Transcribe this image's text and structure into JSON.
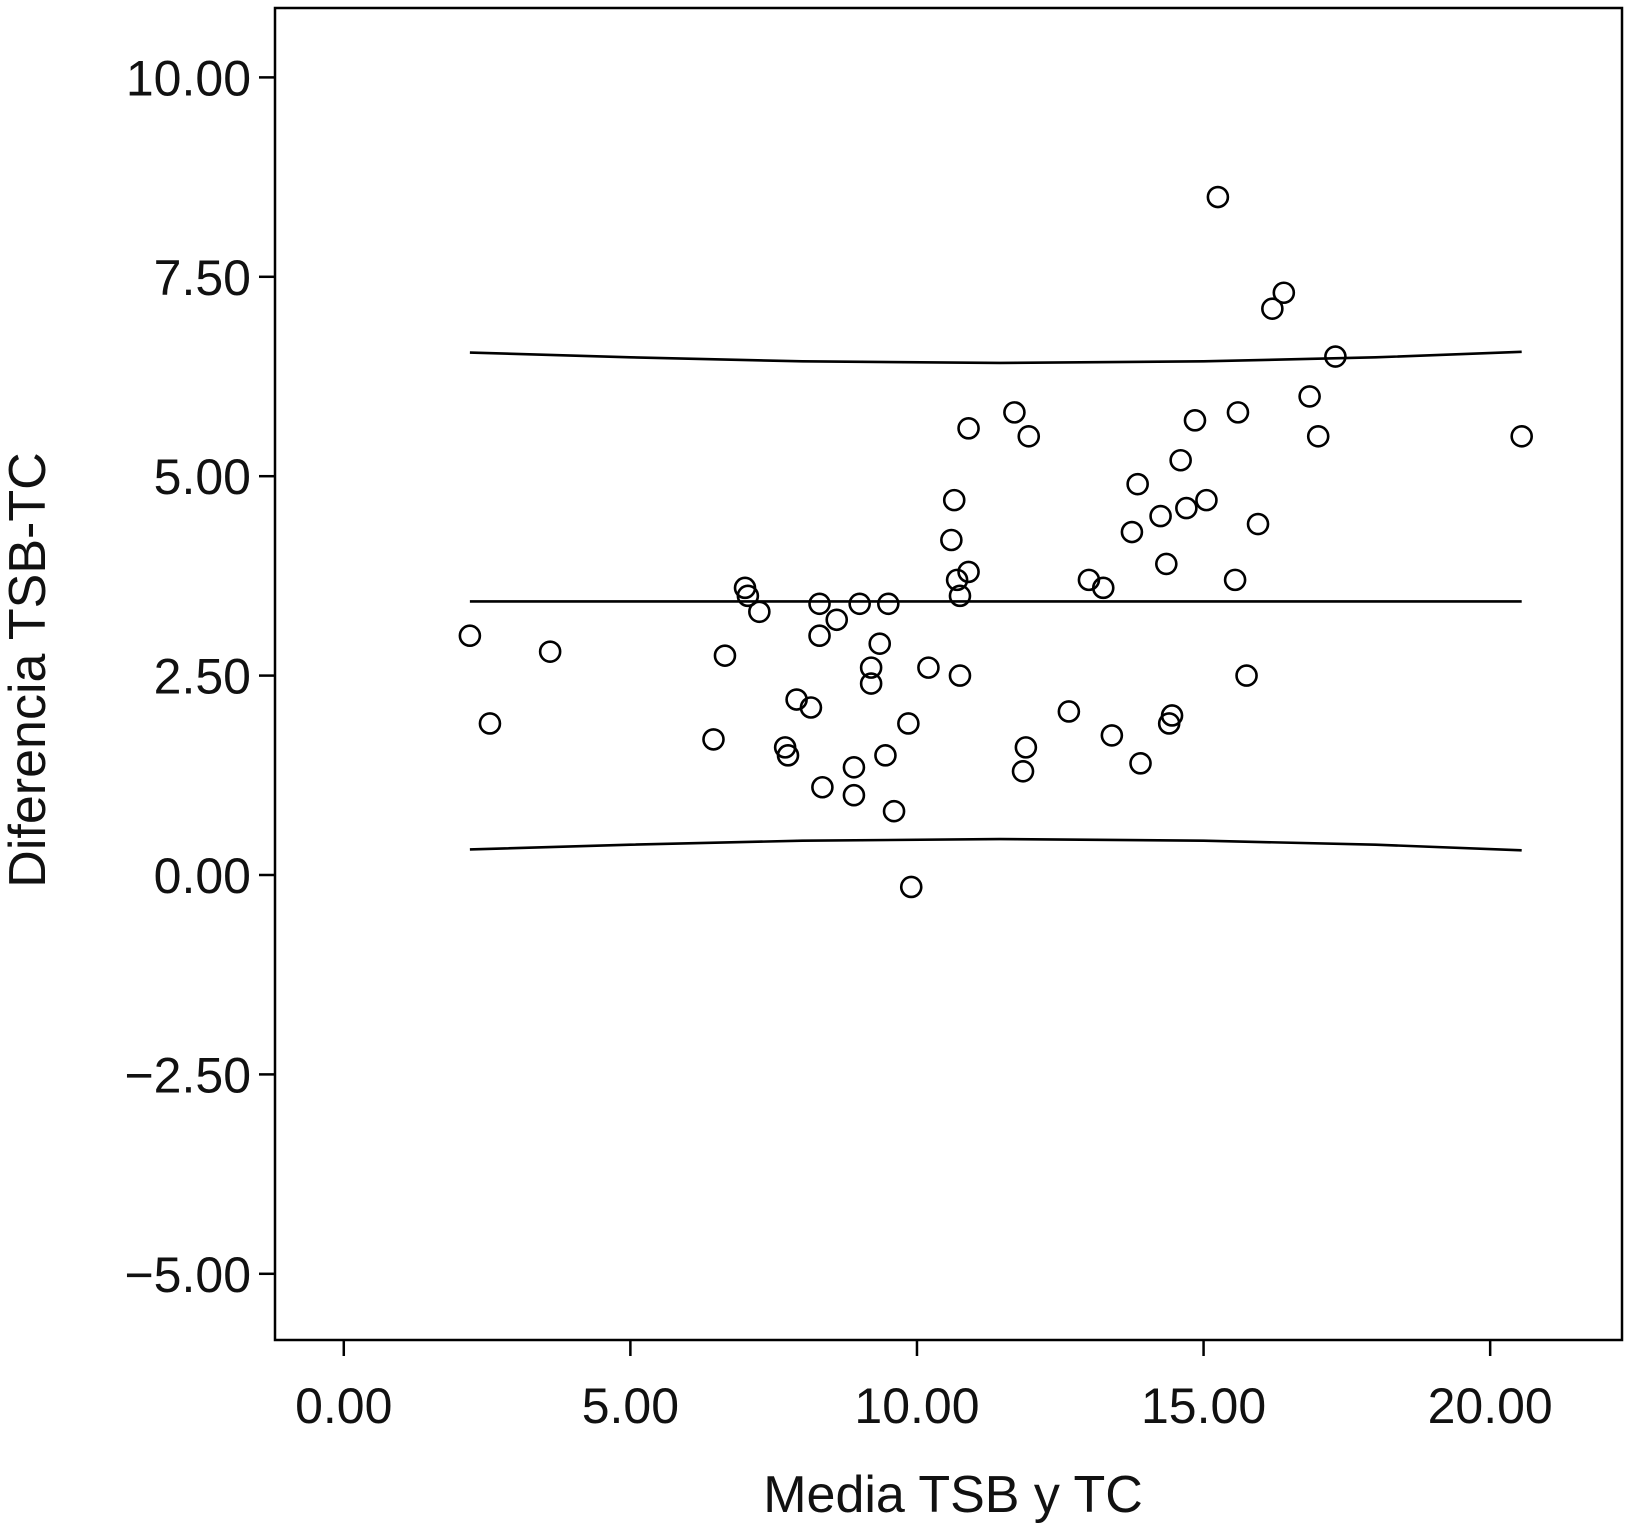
{
  "chart_data": {
    "type": "scatter",
    "title": "",
    "xlabel": "Media TSB y TC",
    "ylabel": "Diferencia TSB-TC",
    "xlim": [
      -1.2,
      22.3
    ],
    "ylim": [
      -5.83,
      10.87
    ],
    "x_ticks": [
      0,
      5,
      10,
      15,
      20
    ],
    "x_tick_labels": [
      "0.00",
      "5.00",
      "10.00",
      "15.00",
      "20.00"
    ],
    "y_ticks": [
      10,
      7.5,
      5,
      2.5,
      0,
      -2.5,
      -5
    ],
    "y_tick_labels": [
      "10.00",
      "7.50",
      "5.00",
      "2.50",
      "0.00",
      "−2.50",
      "−5.00"
    ],
    "grid": false,
    "series": [
      {
        "marker": "open-circle",
        "points": [
          [
            2.2,
            3.0
          ],
          [
            2.55,
            1.9
          ],
          [
            3.6,
            2.8
          ],
          [
            6.45,
            1.7
          ],
          [
            6.65,
            2.75
          ],
          [
            7.0,
            3.6
          ],
          [
            7.05,
            3.5
          ],
          [
            7.25,
            3.3
          ],
          [
            7.7,
            1.6
          ],
          [
            7.75,
            1.5
          ],
          [
            7.9,
            2.2
          ],
          [
            8.15,
            2.1
          ],
          [
            8.3,
            3.4
          ],
          [
            8.3,
            3.0
          ],
          [
            8.35,
            1.1
          ],
          [
            8.6,
            3.2
          ],
          [
            8.9,
            1.35
          ],
          [
            8.9,
            1.0
          ],
          [
            9.0,
            3.4
          ],
          [
            9.2,
            2.6
          ],
          [
            9.2,
            2.4
          ],
          [
            9.35,
            2.9
          ],
          [
            9.45,
            1.5
          ],
          [
            9.5,
            3.4
          ],
          [
            9.6,
            0.8
          ],
          [
            9.85,
            1.9
          ],
          [
            9.9,
            -0.15
          ],
          [
            10.2,
            2.6
          ],
          [
            10.6,
            4.2
          ],
          [
            10.65,
            4.7
          ],
          [
            10.7,
            3.7
          ],
          [
            10.75,
            3.5
          ],
          [
            10.75,
            2.5
          ],
          [
            10.9,
            3.8
          ],
          [
            10.9,
            5.6
          ],
          [
            11.7,
            5.8
          ],
          [
            11.85,
            1.3
          ],
          [
            11.9,
            1.6
          ],
          [
            11.95,
            5.5
          ],
          [
            12.65,
            2.05
          ],
          [
            13.0,
            3.7
          ],
          [
            13.25,
            3.6
          ],
          [
            13.4,
            1.75
          ],
          [
            13.75,
            4.3
          ],
          [
            13.85,
            4.9
          ],
          [
            13.9,
            1.4
          ],
          [
            14.25,
            4.5
          ],
          [
            14.35,
            3.9
          ],
          [
            14.4,
            1.9
          ],
          [
            14.45,
            2.0
          ],
          [
            14.6,
            5.2
          ],
          [
            14.7,
            4.6
          ],
          [
            14.85,
            5.7
          ],
          [
            15.05,
            4.7
          ],
          [
            15.25,
            8.5
          ],
          [
            15.55,
            3.7
          ],
          [
            15.6,
            5.8
          ],
          [
            15.75,
            2.5
          ],
          [
            15.95,
            4.4
          ],
          [
            16.2,
            7.1
          ],
          [
            16.4,
            7.3
          ],
          [
            16.85,
            6.0
          ],
          [
            17.0,
            5.5
          ],
          [
            17.3,
            6.5
          ],
          [
            20.55,
            5.5
          ]
        ]
      }
    ],
    "reference_lines": [
      {
        "kind": "mean",
        "x": [
          2.2,
          20.55
        ],
        "y": [
          3.43,
          3.43
        ]
      },
      {
        "kind": "upper-limit",
        "x": [
          2.2,
          5.0,
          8.0,
          11.45,
          15.0,
          18.0,
          20.55
        ],
        "y": [
          6.55,
          6.49,
          6.44,
          6.42,
          6.44,
          6.49,
          6.56
        ]
      },
      {
        "kind": "lower-limit",
        "x": [
          2.2,
          5.0,
          8.0,
          11.45,
          15.0,
          18.0,
          20.55
        ],
        "y": [
          0.32,
          0.38,
          0.43,
          0.45,
          0.43,
          0.38,
          0.31
        ]
      }
    ]
  }
}
